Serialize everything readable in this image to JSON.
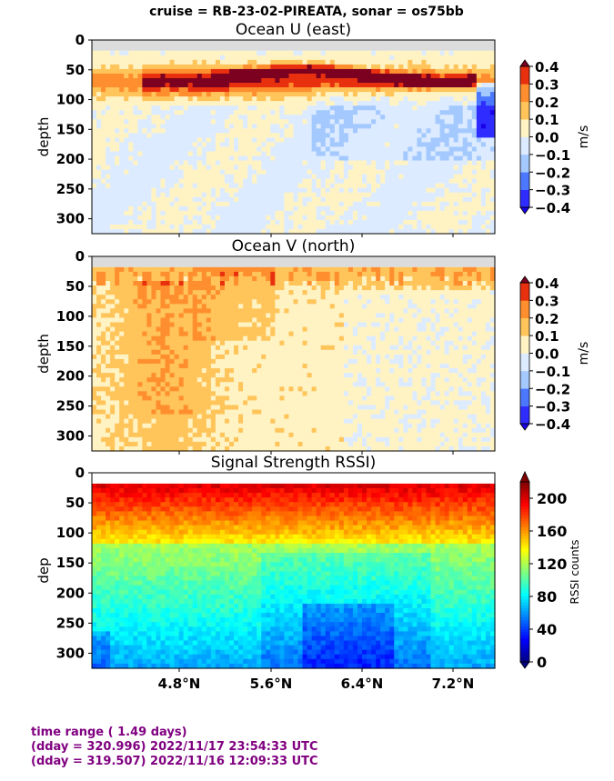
{
  "suptitle": "cruise = RB-23-02-PIREATA,  sonar = os75bb",
  "footer": {
    "line1": "time range ( 1.49 days)",
    "line2": "(dday = 320.996) 2022/11/17 23:54:33 UTC",
    "line3": "(dday = 319.507) 2022/11/16 12:09:33 UTC"
  },
  "chart_data": [
    {
      "type": "heatmap",
      "title": "Ocean U (east)",
      "ylabel": "depth",
      "ylim": [
        325,
        0
      ],
      "yticks": [
        "0",
        "50",
        "100",
        "150",
        "200",
        "250",
        "300"
      ],
      "xticks": [],
      "colorbar": {
        "label": "m/s",
        "ticks": [
          "0.4",
          "0.3",
          "0.2",
          "0.1",
          "0.0",
          "−0.1",
          "−0.2",
          "−0.3",
          "−0.4"
        ],
        "range": [
          -0.4,
          0.4
        ],
        "levels": [
          -0.4,
          -0.3,
          -0.2,
          -0.1,
          0.0,
          0.1,
          0.2,
          0.3,
          0.4
        ]
      },
      "variable": "u"
    },
    {
      "type": "heatmap",
      "title": "Ocean V (north)",
      "ylabel": "depth",
      "ylim": [
        325,
        0
      ],
      "yticks": [
        "0",
        "50",
        "100",
        "150",
        "200",
        "250",
        "300"
      ],
      "xticks": [],
      "colorbar": {
        "label": "m/s",
        "ticks": [
          "0.4",
          "0.3",
          "0.2",
          "0.1",
          "0.0",
          "−0.1",
          "−0.2",
          "−0.3",
          "−0.4"
        ],
        "range": [
          -0.4,
          0.4
        ],
        "levels": [
          -0.4,
          -0.3,
          -0.2,
          -0.1,
          0.0,
          0.1,
          0.2,
          0.3,
          0.4
        ]
      },
      "variable": "v"
    },
    {
      "type": "heatmap",
      "title": "Signal Strength RSSI)",
      "ylabel": "dep",
      "ylim": [
        325,
        0
      ],
      "yticks": [
        "0",
        "50",
        "100",
        "150",
        "200",
        "250",
        "300"
      ],
      "xticks": [
        "4.8°N",
        "5.6°N",
        "6.4°N",
        "7.2°N"
      ],
      "colorbar": {
        "label": "RSSI counts",
        "ticks": [
          "200",
          "160",
          "120",
          "80",
          "40",
          "0"
        ],
        "range": [
          0,
          220
        ],
        "continuous": true
      },
      "variable": "rssi"
    }
  ]
}
